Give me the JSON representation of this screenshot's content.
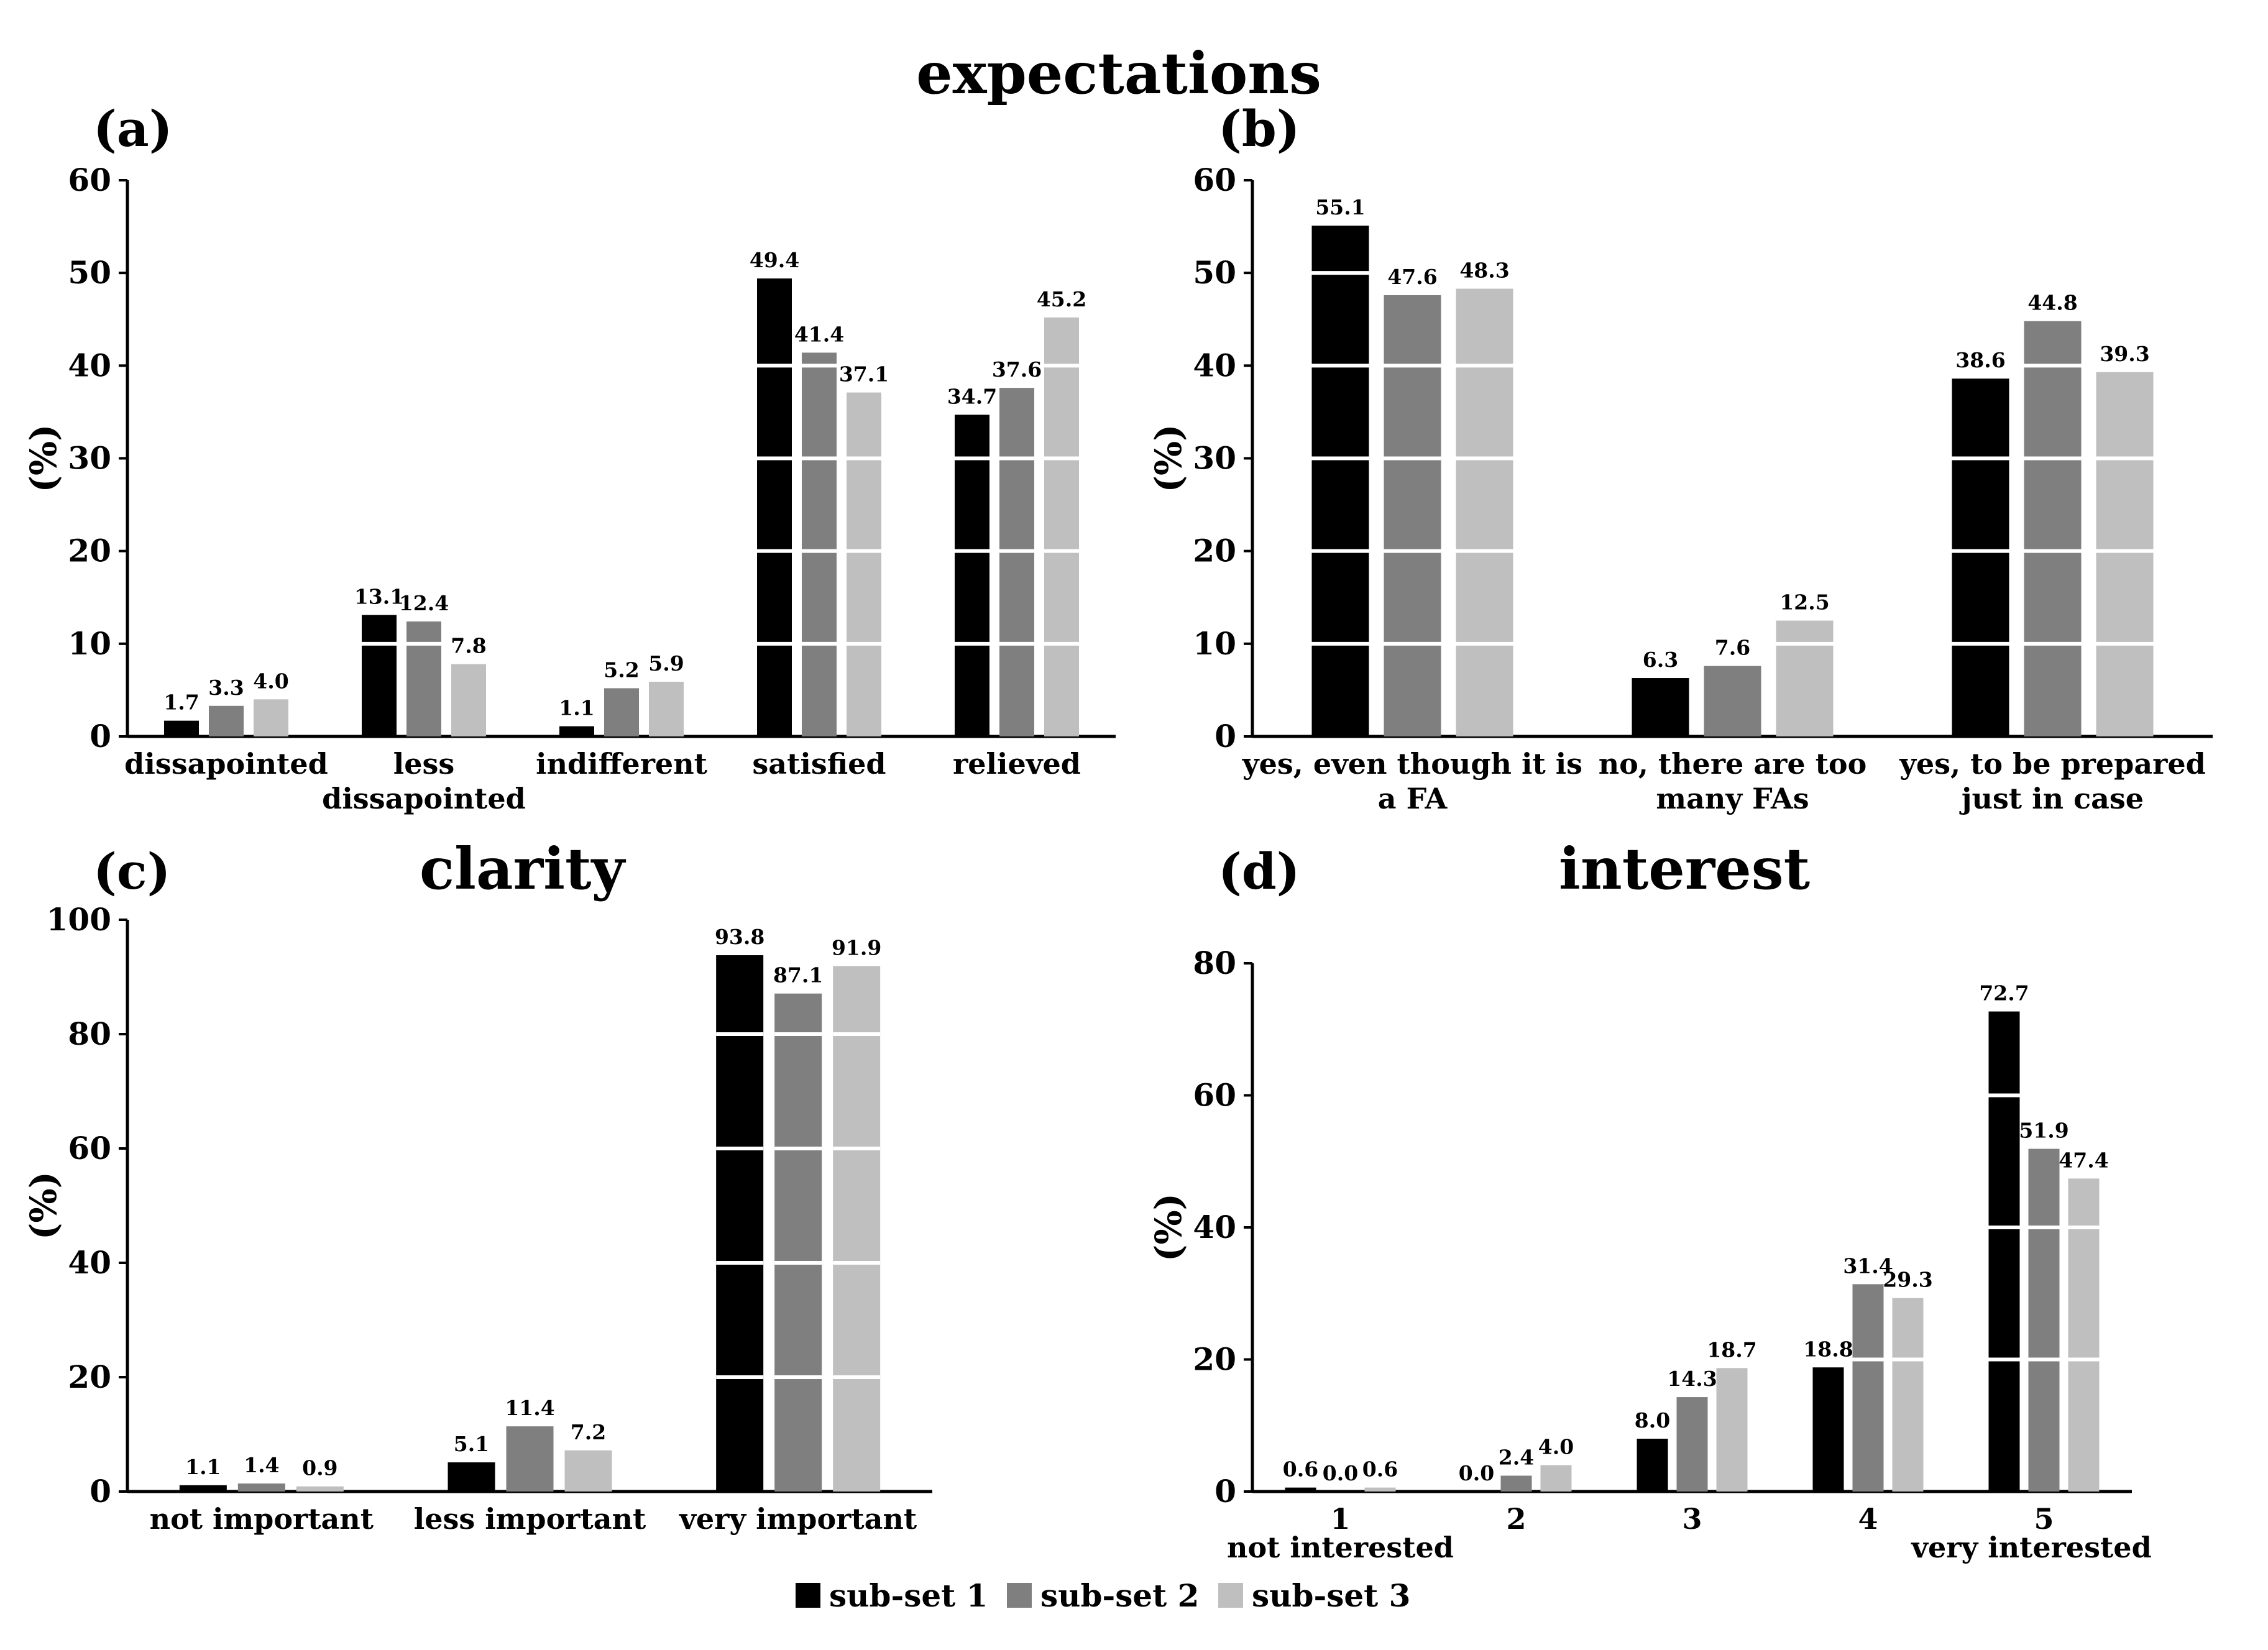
{
  "figure": {
    "title_top": "expectations",
    "legend": [
      {
        "label": "sub-set 1",
        "color": "#000000"
      },
      {
        "label": "sub-set 2",
        "color": "#7f7f7f"
      },
      {
        "label": "sub-set 3",
        "color": "#bfbfbf"
      }
    ]
  },
  "chart_data": [
    {
      "id": "a",
      "type": "bar",
      "panel_label": "(a)",
      "title": "",
      "ylabel": "(%)",
      "ylim": [
        0,
        60
      ],
      "yticks": [
        0,
        10,
        20,
        30,
        40,
        50,
        60
      ],
      "categories": [
        [
          "dissapointed"
        ],
        [
          "less",
          "dissapointed"
        ],
        [
          "indifferent"
        ],
        [
          "satisfied"
        ],
        [
          "relieved"
        ]
      ],
      "series": [
        {
          "name": "sub-set 1",
          "color": "#000000",
          "values": [
            1.7,
            13.1,
            1.1,
            49.4,
            34.7
          ],
          "labels": [
            "1.7",
            "13.1",
            "1.1",
            "49.4",
            "34.7"
          ]
        },
        {
          "name": "sub-set 2",
          "color": "#7f7f7f",
          "values": [
            3.3,
            12.4,
            5.2,
            41.4,
            37.6
          ],
          "labels": [
            "3.3",
            "12.4",
            "5.2",
            "41.4",
            "37.6"
          ]
        },
        {
          "name": "sub-set 3",
          "color": "#bfbfbf",
          "values": [
            4.0,
            7.8,
            5.9,
            37.1,
            45.2
          ],
          "labels": [
            "4.0",
            "7.8",
            "5.9",
            "37.1",
            "45.2"
          ]
        }
      ]
    },
    {
      "id": "b",
      "type": "bar",
      "panel_label": "(b)",
      "title": "",
      "ylabel": "(%)",
      "ylim": [
        0,
        60
      ],
      "yticks": [
        0,
        10,
        20,
        30,
        40,
        50,
        60
      ],
      "categories": [
        [
          "yes, even though it is",
          "a FA"
        ],
        [
          "no, there are too",
          "many FAs"
        ],
        [
          "yes, to be prepared",
          "just in case"
        ]
      ],
      "series": [
        {
          "name": "sub-set 1",
          "color": "#000000",
          "values": [
            55.1,
            6.3,
            38.6
          ],
          "labels": [
            "55.1",
            "6.3",
            "38.6"
          ]
        },
        {
          "name": "sub-set 2",
          "color": "#7f7f7f",
          "values": [
            47.6,
            7.6,
            44.8
          ],
          "labels": [
            "47.6",
            "7.6",
            "44.8"
          ]
        },
        {
          "name": "sub-set 3",
          "color": "#bfbfbf",
          "values": [
            48.3,
            12.5,
            39.3
          ],
          "labels": [
            "48.3",
            "12.5",
            "39.3"
          ]
        }
      ]
    },
    {
      "id": "c",
      "type": "bar",
      "panel_label": "(c)",
      "title": "clarity",
      "ylabel": "(%)",
      "ylim": [
        0,
        100
      ],
      "yticks": [
        0,
        20,
        40,
        60,
        80,
        100
      ],
      "categories": [
        [
          "not important"
        ],
        [
          "less important"
        ],
        [
          "very important"
        ]
      ],
      "series": [
        {
          "name": "sub-set 1",
          "color": "#000000",
          "values": [
            1.1,
            5.1,
            93.8
          ],
          "labels": [
            "1.1",
            "5.1",
            "93.8"
          ]
        },
        {
          "name": "sub-set 2",
          "color": "#7f7f7f",
          "values": [
            1.4,
            11.4,
            87.1
          ],
          "labels": [
            "1.4",
            "11.4",
            "87.1"
          ]
        },
        {
          "name": "sub-set 3",
          "color": "#bfbfbf",
          "values": [
            0.9,
            7.2,
            91.9
          ],
          "labels": [
            "0.9",
            "7.2",
            "91.9"
          ]
        }
      ]
    },
    {
      "id": "d",
      "type": "bar",
      "panel_label": "(d)",
      "title": "interest",
      "ylabel": "(%)",
      "ylim": [
        0,
        80
      ],
      "yticks": [
        0,
        20,
        40,
        60,
        80
      ],
      "categories": [
        [
          "1"
        ],
        [
          "2"
        ],
        [
          "3"
        ],
        [
          "4"
        ],
        [
          "5"
        ]
      ],
      "category_notes": {
        "first": "not interested",
        "last": "very interested"
      },
      "series": [
        {
          "name": "sub-set 1",
          "color": "#000000",
          "values": [
            0.6,
            0.0,
            8.0,
            18.8,
            72.7
          ],
          "labels": [
            "0.6",
            "0.0",
            "8.0",
            "18.8",
            "72.7"
          ]
        },
        {
          "name": "sub-set 2",
          "color": "#7f7f7f",
          "values": [
            0.0,
            2.4,
            14.3,
            31.4,
            51.9
          ],
          "labels": [
            "0.0",
            "2.4",
            "14.3",
            "31.4",
            "51.9"
          ]
        },
        {
          "name": "sub-set 3",
          "color": "#bfbfbf",
          "values": [
            0.6,
            4.0,
            18.7,
            29.3,
            47.4
          ],
          "labels": [
            "0.6",
            "4.0",
            "18.7",
            "29.3",
            "47.4"
          ]
        }
      ]
    }
  ]
}
